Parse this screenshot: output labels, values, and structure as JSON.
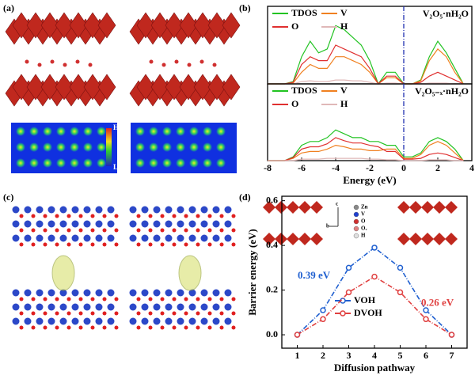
{
  "panel_labels": [
    "(a)",
    "(b)",
    "(c)",
    "(d)"
  ],
  "colorbar": {
    "high": "High",
    "low": "Low"
  },
  "inset_legend": [
    "Zn",
    "V",
    "O",
    "Oᵥ",
    "H"
  ],
  "inset_axes": [
    "c",
    "b"
  ],
  "chart_data": [
    {
      "type": "line",
      "legend": "upper left",
      "annotation": "V₂O₅·nH₂O",
      "vline": 0,
      "x": [
        -8,
        -7.5,
        -7,
        -6.5,
        -6,
        -5.5,
        -5,
        -4.5,
        -4,
        -3.5,
        -3,
        -2.5,
        -2,
        -1.5,
        -1,
        -0.5,
        0,
        0.5,
        1,
        1.5,
        2,
        2.5,
        3,
        3.5
      ],
      "xlim": [
        -8,
        4
      ],
      "ylim": [
        0,
        10
      ],
      "series": [
        {
          "name": "TDOS",
          "color": "#22c322",
          "values": [
            0,
            0,
            0,
            0.3,
            3.5,
            5.5,
            4,
            4.5,
            7.5,
            7,
            6,
            5,
            3,
            0,
            1.5,
            1.5,
            0,
            0,
            0.5,
            3.5,
            5.5,
            4,
            2,
            0
          ]
        },
        {
          "name": "V",
          "color": "#f08020",
          "values": [
            0,
            0,
            0,
            0.1,
            1.5,
            2.5,
            2,
            2,
            3.5,
            3.5,
            3,
            2.5,
            1.5,
            0,
            0.8,
            0.8,
            0,
            0,
            0.4,
            3,
            4.5,
            3.5,
            1.5,
            0
          ]
        },
        {
          "name": "O",
          "color": "#e03030",
          "values": [
            0,
            0,
            0,
            0.2,
            2.5,
            3.5,
            3,
            3,
            5,
            4.5,
            4,
            3.5,
            2,
            0,
            1,
            1,
            0,
            0,
            0.2,
            1,
            1.5,
            1,
            0.5,
            0
          ]
        },
        {
          "name": "H",
          "color": "#e0b8b8",
          "values": [
            0,
            0,
            0,
            0,
            0.3,
            0.4,
            0.3,
            0.3,
            0.5,
            0.5,
            0.4,
            0.4,
            0.2,
            0,
            0.1,
            0.1,
            0,
            0,
            0,
            0.1,
            0.1,
            0.1,
            0,
            0
          ]
        }
      ]
    },
    {
      "type": "line",
      "legend": "upper left",
      "annotation": "V₂O₅₋ₓ·nH₂O",
      "vline": 0,
      "xlabel": "Energy (eV)",
      "x": [
        -8,
        -7.5,
        -7,
        -6.5,
        -6,
        -5.5,
        -5,
        -4.5,
        -4,
        -3.5,
        -3,
        -2.5,
        -2,
        -1.5,
        -1,
        -0.5,
        0,
        0.5,
        1,
        1.5,
        2,
        2.5,
        3,
        3.5
      ],
      "xlim": [
        -8,
        4
      ],
      "xticks": [
        -8,
        -6,
        -4,
        -2,
        0,
        2,
        4
      ],
      "ylim": [
        0,
        10
      ],
      "series": [
        {
          "name": "TDOS",
          "color": "#22c322",
          "values": [
            0,
            0,
            0,
            0.5,
            2,
            2.5,
            2.5,
            3,
            4,
            3.5,
            3,
            3,
            2.5,
            2.5,
            2,
            2,
            0.5,
            0.5,
            1,
            2.5,
            3,
            2.5,
            1.5,
            0
          ]
        },
        {
          "name": "V",
          "color": "#f08020",
          "values": [
            0,
            0,
            0,
            0.3,
            1,
            1.2,
            1.2,
            1.5,
            2,
            1.8,
            1.5,
            1.5,
            1.3,
            1.3,
            1.5,
            1.5,
            0.3,
            0.3,
            0.8,
            2,
            2.5,
            2,
            1,
            0
          ]
        },
        {
          "name": "O",
          "color": "#e03030",
          "values": [
            0,
            0,
            0,
            0.4,
            1.5,
            1.8,
            1.8,
            2.2,
            3,
            2.6,
            2.3,
            2.3,
            2,
            1.8,
            1.2,
            1.2,
            0.2,
            0.2,
            0.3,
            0.8,
            1,
            0.8,
            0.4,
            0
          ]
        },
        {
          "name": "H",
          "color": "#e0b8b8",
          "values": [
            0,
            0,
            0,
            0,
            0.2,
            0.2,
            0.2,
            0.3,
            0.3,
            0.3,
            0.3,
            0.3,
            0.2,
            0.2,
            0.1,
            0.1,
            0,
            0,
            0,
            0.1,
            0.1,
            0.1,
            0,
            0
          ]
        }
      ]
    },
    {
      "type": "line",
      "legend": "lower center",
      "markers": true,
      "xlabel": "Diffusion pathway",
      "ylabel": "Barrier energy (eV)",
      "annotations": [
        "0.39 eV",
        "0.26 eV"
      ],
      "x": [
        1,
        2,
        3,
        4,
        5,
        6,
        7
      ],
      "xlim": [
        0.4,
        7.6
      ],
      "xticks": [
        1,
        2,
        3,
        4,
        5,
        6,
        7
      ],
      "ylim": [
        -0.06,
        0.62
      ],
      "yticks": [
        {
          "value": 0,
          "label": "0.0"
        },
        0.2,
        0.4,
        0.6
      ],
      "series": [
        {
          "name": "VOH",
          "color": "#2060d0",
          "values": [
            0,
            0.11,
            0.3,
            0.39,
            0.3,
            0.11,
            0
          ]
        },
        {
          "name": "DVOH",
          "color": "#e04040",
          "values": [
            0,
            0.07,
            0.19,
            0.26,
            0.19,
            0.07,
            0
          ]
        }
      ]
    }
  ]
}
